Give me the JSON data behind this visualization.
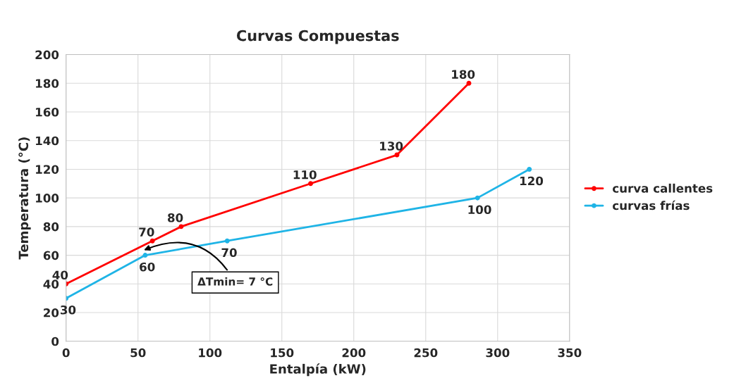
{
  "chart_data": {
    "type": "line",
    "title": "Curvas Compuestas",
    "xlabel": "Entalpía (kW)",
    "ylabel": "Temperatura (°C)",
    "series": [
      {
        "name": "curva callentes",
        "color": "#ff0000",
        "x": [
          0,
          60,
          80,
          170,
          230,
          280
        ],
        "values": [
          40,
          70,
          80,
          110,
          130,
          180
        ]
      },
      {
        "name": "curvas frías",
        "color": "#1fb4e6",
        "x": [
          0,
          55,
          112,
          286,
          322
        ],
        "values": [
          30,
          60,
          70,
          100,
          120
        ]
      }
    ],
    "annotations": [
      "ΔTmin= 7 °C"
    ],
    "xlim": [
      0,
      350
    ],
    "xticks": [
      0,
      50,
      100,
      150,
      200,
      250,
      300,
      350
    ],
    "ylim": [
      0,
      200
    ],
    "yticks": [
      0,
      20,
      40,
      60,
      80,
      100,
      120,
      140,
      160,
      180,
      200
    ],
    "grid": true,
    "legend": "right",
    "marker": "circle",
    "line_style": "solid",
    "data_labels": true
  }
}
